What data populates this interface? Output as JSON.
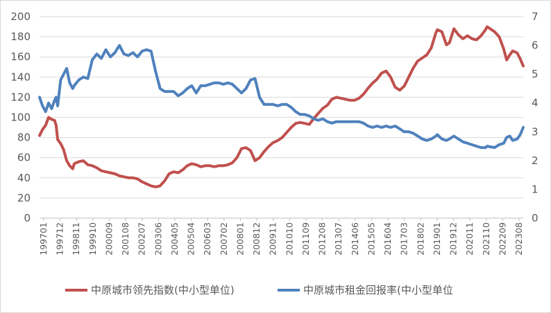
{
  "chart_data": {
    "type": "line",
    "title": "",
    "xlabel": "",
    "ylabel": "",
    "x_tick_labels": [
      "199701",
      "199712",
      "199811",
      "199910",
      "200009",
      "200108",
      "200207",
      "200306",
      "200405",
      "200504",
      "200603",
      "200702",
      "200801",
      "200812",
      "200911",
      "201010",
      "201109",
      "201208",
      "201307",
      "201406",
      "201505",
      "201604",
      "201703",
      "201802",
      "201901",
      "201912",
      "202011",
      "202110",
      "202209",
      "202308"
    ],
    "y_left": {
      "range": [
        0,
        200
      ],
      "ticks": [
        "0",
        "20",
        "40",
        "60",
        "80",
        "100",
        "120",
        "140",
        "160",
        "180",
        "200"
      ]
    },
    "y_right": {
      "range": [
        0,
        7
      ],
      "ticks": [
        "0",
        "1",
        "2",
        "3",
        "4",
        "5",
        "6",
        "7"
      ]
    },
    "legend_position": "bottom",
    "grid": "horizontal",
    "series": [
      {
        "name": "中原城市领先指数(中小型单位)",
        "axis": "left",
        "color": "#c0504d",
        "points": [
          [
            "199701",
            82
          ],
          [
            "199703",
            88
          ],
          [
            "199705",
            92
          ],
          [
            "199707",
            100
          ],
          [
            "199709",
            98
          ],
          [
            "199711",
            97
          ],
          [
            "199712",
            92
          ],
          [
            "199801",
            78
          ],
          [
            "199803",
            74
          ],
          [
            "199805",
            68
          ],
          [
            "199807",
            57
          ],
          [
            "199809",
            52
          ],
          [
            "199811",
            49
          ],
          [
            "199812",
            54
          ],
          [
            "199903",
            56
          ],
          [
            "199906",
            57
          ],
          [
            "199909",
            53
          ],
          [
            "199912",
            52
          ],
          [
            "200003",
            50
          ],
          [
            "200006",
            47
          ],
          [
            "200009",
            46
          ],
          [
            "200012",
            45
          ],
          [
            "200103",
            44
          ],
          [
            "200106",
            42
          ],
          [
            "200109",
            41
          ],
          [
            "200112",
            40
          ],
          [
            "200203",
            40
          ],
          [
            "200206",
            39
          ],
          [
            "200209",
            36
          ],
          [
            "200212",
            34
          ],
          [
            "200303",
            32
          ],
          [
            "200306",
            31
          ],
          [
            "200309",
            32
          ],
          [
            "200312",
            37
          ],
          [
            "200403",
            44
          ],
          [
            "200406",
            46
          ],
          [
            "200409",
            45
          ],
          [
            "200412",
            48
          ],
          [
            "200503",
            52
          ],
          [
            "200506",
            54
          ],
          [
            "200509",
            53
          ],
          [
            "200512",
            51
          ],
          [
            "200603",
            52
          ],
          [
            "200606",
            52
          ],
          [
            "200609",
            51
          ],
          [
            "200612",
            52
          ],
          [
            "200703",
            52
          ],
          [
            "200706",
            53
          ],
          [
            "200709",
            55
          ],
          [
            "200712",
            60
          ],
          [
            "200803",
            69
          ],
          [
            "200806",
            70
          ],
          [
            "200809",
            67
          ],
          [
            "200812",
            57
          ],
          [
            "200903",
            60
          ],
          [
            "200906",
            66
          ],
          [
            "200909",
            71
          ],
          [
            "200912",
            75
          ],
          [
            "201003",
            77
          ],
          [
            "201006",
            80
          ],
          [
            "201009",
            85
          ],
          [
            "201012",
            90
          ],
          [
            "201103",
            94
          ],
          [
            "201106",
            95
          ],
          [
            "201109",
            94
          ],
          [
            "201112",
            93
          ],
          [
            "201203",
            99
          ],
          [
            "201206",
            104
          ],
          [
            "201209",
            109
          ],
          [
            "201212",
            112
          ],
          [
            "201303",
            118
          ],
          [
            "201306",
            120
          ],
          [
            "201309",
            119
          ],
          [
            "201312",
            118
          ],
          [
            "201403",
            117
          ],
          [
            "201406",
            117
          ],
          [
            "201409",
            119
          ],
          [
            "201412",
            123
          ],
          [
            "201503",
            129
          ],
          [
            "201506",
            134
          ],
          [
            "201509",
            138
          ],
          [
            "201512",
            144
          ],
          [
            "201603",
            146
          ],
          [
            "201606",
            140
          ],
          [
            "201609",
            130
          ],
          [
            "201612",
            127
          ],
          [
            "201703",
            131
          ],
          [
            "201706",
            140
          ],
          [
            "201709",
            149
          ],
          [
            "201712",
            156
          ],
          [
            "201803",
            159
          ],
          [
            "201806",
            162
          ],
          [
            "201809",
            169
          ],
          [
            "201812",
            184
          ],
          [
            "201901",
            187
          ],
          [
            "201904",
            185
          ],
          [
            "201907",
            172
          ],
          [
            "201909",
            174
          ],
          [
            "201912",
            188
          ],
          [
            "202003",
            182
          ],
          [
            "202006",
            178
          ],
          [
            "202009",
            181
          ],
          [
            "202012",
            178
          ],
          [
            "202103",
            177
          ],
          [
            "202106",
            181
          ],
          [
            "202109",
            187
          ],
          [
            "202110",
            190
          ],
          [
            "202203",
            185
          ],
          [
            "202206",
            180
          ],
          [
            "202209",
            168
          ],
          [
            "202211",
            157
          ],
          [
            "202301",
            162
          ],
          [
            "202303",
            166
          ],
          [
            "202306",
            164
          ],
          [
            "202308",
            158
          ],
          [
            "202310",
            151
          ]
        ]
      },
      {
        "name": "中原城市租金回报率(中小型单位",
        "axis": "right",
        "color": "#4f81bd",
        "points": [
          [
            "199701",
            4.2
          ],
          [
            "199703",
            3.9
          ],
          [
            "199705",
            3.7
          ],
          [
            "199707",
            4.0
          ],
          [
            "199709",
            3.8
          ],
          [
            "199711",
            4.1
          ],
          [
            "199712",
            4.2
          ],
          [
            "199801",
            3.9
          ],
          [
            "199803",
            4.8
          ],
          [
            "199805",
            5.0
          ],
          [
            "199807",
            5.2
          ],
          [
            "199809",
            4.7
          ],
          [
            "199811",
            4.5
          ],
          [
            "199812",
            4.6
          ],
          [
            "199903",
            4.8
          ],
          [
            "199906",
            4.9
          ],
          [
            "199909",
            4.85
          ],
          [
            "199912",
            5.5
          ],
          [
            "200003",
            5.7
          ],
          [
            "200006",
            5.55
          ],
          [
            "200009",
            5.85
          ],
          [
            "200012",
            5.6
          ],
          [
            "200103",
            5.75
          ],
          [
            "200106",
            6.0
          ],
          [
            "200109",
            5.7
          ],
          [
            "200112",
            5.65
          ],
          [
            "200203",
            5.75
          ],
          [
            "200206",
            5.6
          ],
          [
            "200209",
            5.8
          ],
          [
            "200212",
            5.85
          ],
          [
            "200303",
            5.8
          ],
          [
            "200306",
            5.1
          ],
          [
            "200309",
            4.5
          ],
          [
            "200312",
            4.4
          ],
          [
            "200403",
            4.4
          ],
          [
            "200406",
            4.4
          ],
          [
            "200409",
            4.25
          ],
          [
            "200412",
            4.35
          ],
          [
            "200503",
            4.5
          ],
          [
            "200506",
            4.6
          ],
          [
            "200509",
            4.35
          ],
          [
            "200512",
            4.6
          ],
          [
            "200603",
            4.6
          ],
          [
            "200606",
            4.65
          ],
          [
            "200609",
            4.7
          ],
          [
            "200612",
            4.7
          ],
          [
            "200703",
            4.65
          ],
          [
            "200706",
            4.7
          ],
          [
            "200709",
            4.65
          ],
          [
            "200712",
            4.5
          ],
          [
            "200803",
            4.35
          ],
          [
            "200806",
            4.5
          ],
          [
            "200809",
            4.8
          ],
          [
            "200812",
            4.85
          ],
          [
            "200903",
            4.2
          ],
          [
            "200906",
            3.95
          ],
          [
            "200909",
            3.95
          ],
          [
            "200912",
            3.95
          ],
          [
            "201003",
            3.9
          ],
          [
            "201006",
            3.95
          ],
          [
            "201009",
            3.95
          ],
          [
            "201012",
            3.85
          ],
          [
            "201103",
            3.7
          ],
          [
            "201106",
            3.6
          ],
          [
            "201109",
            3.6
          ],
          [
            "201112",
            3.55
          ],
          [
            "201203",
            3.45
          ],
          [
            "201206",
            3.4
          ],
          [
            "201209",
            3.45
          ],
          [
            "201212",
            3.35
          ],
          [
            "201303",
            3.3
          ],
          [
            "201306",
            3.35
          ],
          [
            "201309",
            3.35
          ],
          [
            "201312",
            3.35
          ],
          [
            "201403",
            3.35
          ],
          [
            "201406",
            3.35
          ],
          [
            "201409",
            3.35
          ],
          [
            "201412",
            3.3
          ],
          [
            "201503",
            3.2
          ],
          [
            "201506",
            3.15
          ],
          [
            "201509",
            3.2
          ],
          [
            "201512",
            3.15
          ],
          [
            "201603",
            3.2
          ],
          [
            "201606",
            3.15
          ],
          [
            "201609",
            3.2
          ],
          [
            "201612",
            3.1
          ],
          [
            "201703",
            3.0
          ],
          [
            "201706",
            3.0
          ],
          [
            "201709",
            2.95
          ],
          [
            "201712",
            2.85
          ],
          [
            "201803",
            2.75
          ],
          [
            "201806",
            2.7
          ],
          [
            "201809",
            2.75
          ],
          [
            "201812",
            2.85
          ],
          [
            "201901",
            2.9
          ],
          [
            "201904",
            2.75
          ],
          [
            "201907",
            2.7
          ],
          [
            "201909",
            2.75
          ],
          [
            "201912",
            2.85
          ],
          [
            "202003",
            2.75
          ],
          [
            "202006",
            2.65
          ],
          [
            "202009",
            2.6
          ],
          [
            "202012",
            2.55
          ],
          [
            "202103",
            2.5
          ],
          [
            "202106",
            2.45
          ],
          [
            "202109",
            2.45
          ],
          [
            "202110",
            2.5
          ],
          [
            "202203",
            2.45
          ],
          [
            "202206",
            2.55
          ],
          [
            "202209",
            2.6
          ],
          [
            "202211",
            2.8
          ],
          [
            "202301",
            2.85
          ],
          [
            "202303",
            2.7
          ],
          [
            "202306",
            2.75
          ],
          [
            "202308",
            2.9
          ],
          [
            "202310",
            3.15
          ]
        ]
      }
    ]
  }
}
